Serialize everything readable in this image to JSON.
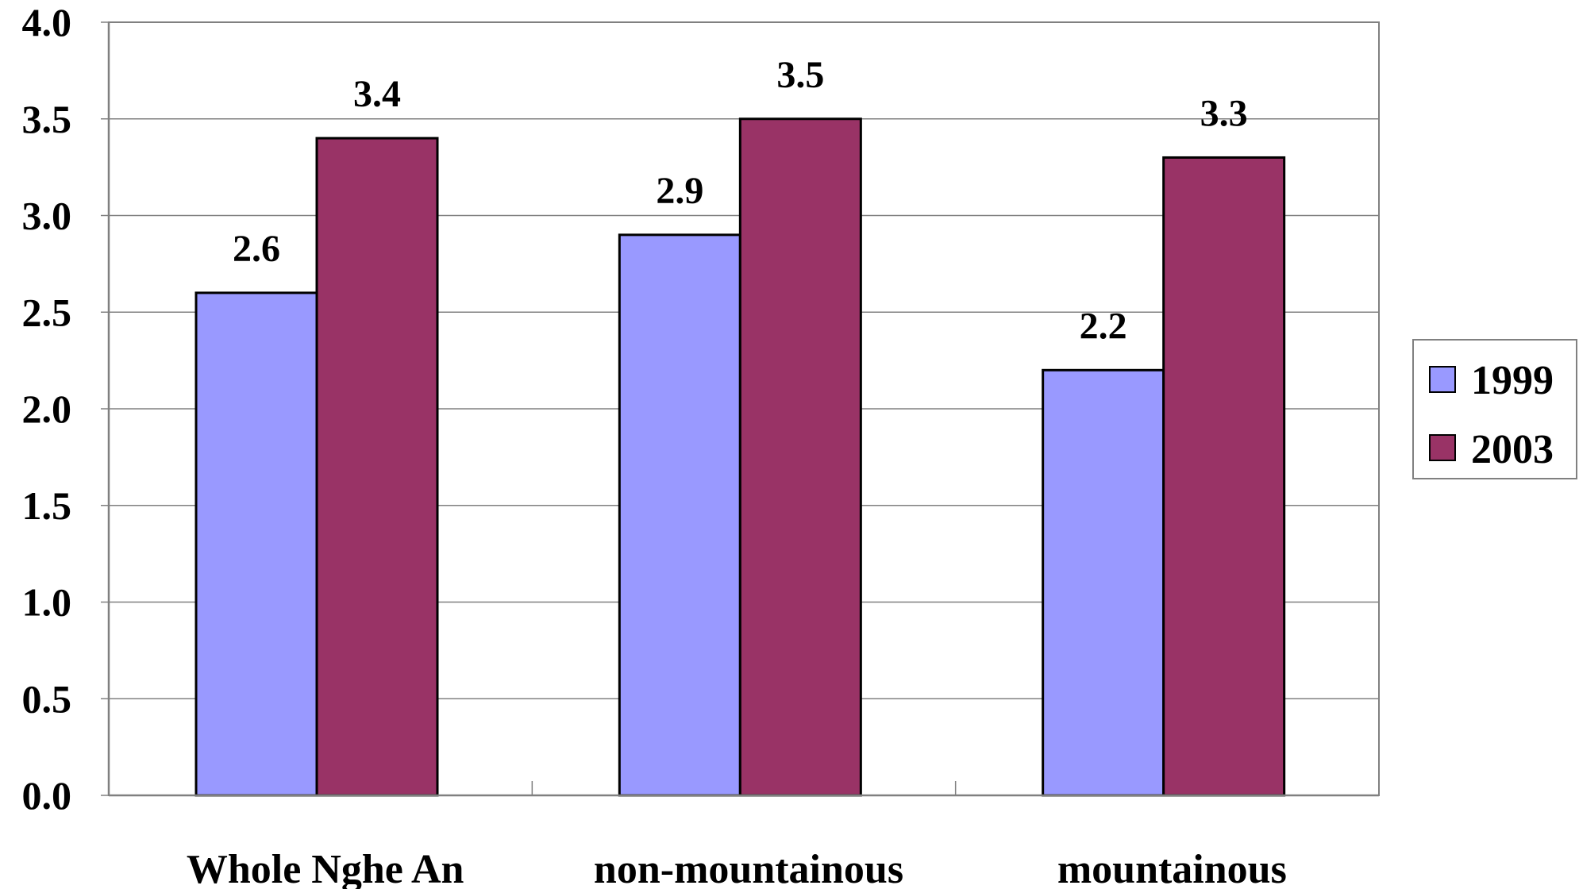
{
  "chart_data": {
    "type": "bar",
    "title": "",
    "xlabel": "",
    "ylabel": "",
    "categories": [
      "Whole Nghe An",
      "non-mountainous",
      "mountainous"
    ],
    "series": [
      {
        "name": "1999",
        "values": [
          2.6,
          2.9,
          2.2
        ],
        "color": "#9999ff"
      },
      {
        "name": "2003",
        "values": [
          3.4,
          3.5,
          3.3
        ],
        "color": "#993366"
      }
    ],
    "ylim": [
      0,
      4
    ],
    "yticks": [
      "0.0",
      "0.5",
      "1.0",
      "1.5",
      "2.0",
      "2.5",
      "3.0",
      "3.5",
      "4.0"
    ],
    "grid": true,
    "legend_position": "right",
    "data_labels": true
  }
}
